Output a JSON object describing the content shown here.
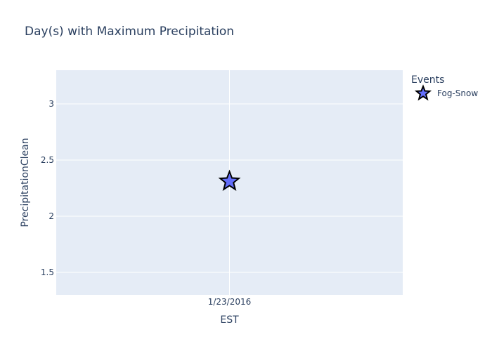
{
  "chart_data": {
    "type": "scatter",
    "title": "Day(s) with Maximum Precipitation",
    "xlabel": "EST",
    "ylabel": "PrecipitationClean",
    "x_categories": [
      "1/23/2016"
    ],
    "ylim": [
      1.3,
      3.3
    ],
    "y_ticks": [
      1.5,
      2,
      2.5,
      3
    ],
    "y_tick_labels": [
      "1.5",
      "2",
      "2.5",
      "3"
    ],
    "grid": true,
    "legend": {
      "title": "Events",
      "placement": "top-right"
    },
    "series": [
      {
        "name": "Fog-Snow",
        "marker": "star",
        "color": "#636efa",
        "points": [
          {
            "x": "1/23/2016",
            "y": 2.31
          }
        ]
      }
    ]
  },
  "colors": {
    "plot_background": "#e5ecf6",
    "gridline": "#ffffff",
    "text": "#2a3f5f",
    "marker_outline": "#000000"
  }
}
